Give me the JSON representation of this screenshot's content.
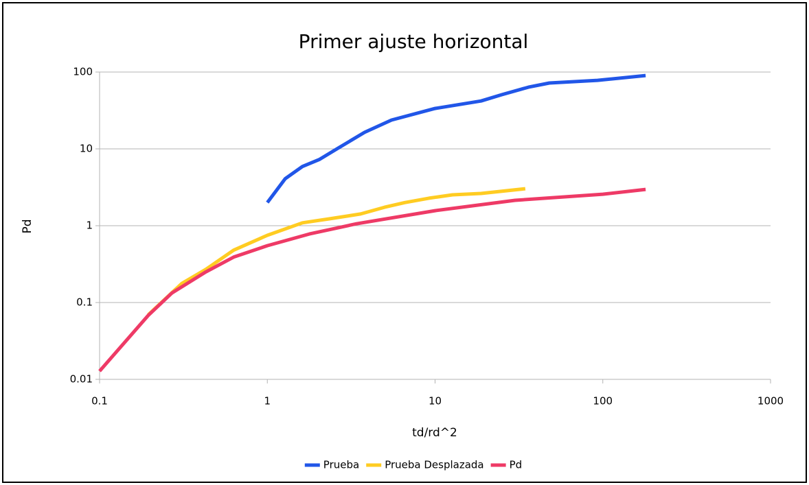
{
  "chart_data": {
    "type": "line",
    "title": "Primer ajuste horizontal",
    "x_label": "td/rd^2",
    "y_label": "Pd",
    "log_x": true,
    "log_y": true,
    "grid": true,
    "legend": "bottom",
    "xlim": [
      0.1,
      1000
    ],
    "xticks": [
      0.1,
      1,
      10,
      100,
      1000
    ],
    "ylim": [
      0.01,
      100
    ],
    "yticks": [
      0.01,
      0.1,
      1,
      10,
      100
    ],
    "series": [
      {
        "name": "Prueba",
        "color": "#2156e8",
        "x": [
          1,
          1.28,
          1.62,
          2.05,
          2.6,
          3.8,
          5.5,
          10,
          18.8,
          25,
          36,
          48,
          93,
          180
        ],
        "values": [
          2,
          4.1,
          5.9,
          7.3,
          10,
          16.4,
          23.7,
          33.6,
          42,
          50.7,
          63.5,
          72,
          78,
          90
        ]
      },
      {
        "name": "Prueba Desplazada",
        "color": "#ffcc22",
        "x": [
          0.195,
          0.31,
          0.43,
          0.63,
          1,
          1.62,
          2.36,
          3.6,
          5.0,
          6.6,
          9.2,
          12.7,
          18.8,
          34.5
        ],
        "values": [
          0.069,
          0.178,
          0.27,
          0.48,
          0.75,
          1.09,
          1.23,
          1.42,
          1.74,
          2.0,
          2.28,
          2.52,
          2.63,
          3.03
        ]
      },
      {
        "name": "Pd",
        "color": "#ee3a66",
        "x": [
          0.1,
          0.195,
          0.27,
          0.43,
          0.63,
          1,
          1.78,
          3.4,
          10,
          30,
          100,
          180
        ],
        "values": [
          0.0128,
          0.068,
          0.133,
          0.25,
          0.39,
          0.55,
          0.78,
          1.06,
          1.57,
          2.14,
          2.57,
          2.97
        ]
      }
    ]
  }
}
